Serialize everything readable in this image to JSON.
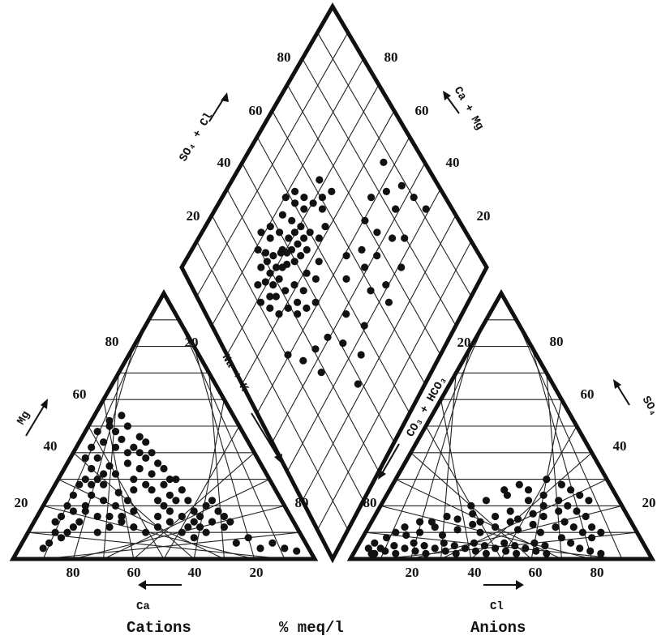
{
  "chart_data": {
    "type": "scatter",
    "subtype": "piper-diagram",
    "captions": {
      "cations": "Cations",
      "units": "% meq/l",
      "anions": "Anions"
    },
    "axis_labels": {
      "ca": "Ca",
      "mg": "Mg",
      "na_k": "Na + K",
      "cl": "Cl",
      "so4": "SO₄",
      "co3_hco3": "CO₃ + HCO₃",
      "so4_cl": "SO₄ + Cl",
      "ca_mg": "Ca + Mg"
    },
    "ticks": {
      "cation_ca": [
        "80",
        "60",
        "40",
        "20"
      ],
      "cation_mg": [
        "20",
        "40",
        "60",
        "80"
      ],
      "cation_na_k": [
        "20",
        "80"
      ],
      "anion_cl": [
        "20",
        "40",
        "60",
        "80"
      ],
      "anion_so4": [
        "20",
        "40",
        "60",
        "80"
      ],
      "anion_co3_hco3": [
        "20",
        "80"
      ],
      "diamond_so4_cl": [
        "20",
        "40",
        "60",
        "80"
      ],
      "diamond_ca_mg": [
        "20",
        "40",
        "60",
        "80"
      ]
    },
    "cation_points": [
      [
        65,
        25
      ],
      [
        70,
        28
      ],
      [
        60,
        30
      ],
      [
        68,
        35
      ],
      [
        72,
        38
      ],
      [
        66,
        42
      ],
      [
        64,
        45
      ],
      [
        70,
        32
      ],
      [
        62,
        36
      ],
      [
        58,
        40
      ],
      [
        66,
        48
      ],
      [
        68,
        52
      ],
      [
        72,
        30
      ],
      [
        74,
        34
      ],
      [
        60,
        26
      ],
      [
        56,
        28
      ],
      [
        54,
        32
      ],
      [
        52,
        22
      ],
      [
        50,
        20
      ],
      [
        48,
        24
      ],
      [
        62,
        22
      ],
      [
        66,
        20
      ],
      [
        70,
        22
      ],
      [
        74,
        24
      ],
      [
        76,
        18
      ],
      [
        78,
        14
      ],
      [
        80,
        12
      ],
      [
        82,
        10
      ],
      [
        84,
        8
      ],
      [
        86,
        10
      ],
      [
        88,
        6
      ],
      [
        90,
        4
      ],
      [
        72,
        10
      ],
      [
        68,
        12
      ],
      [
        64,
        14
      ],
      [
        60,
        12
      ],
      [
        56,
        10
      ],
      [
        52,
        12
      ],
      [
        48,
        14
      ],
      [
        44,
        10
      ],
      [
        40,
        8
      ],
      [
        36,
        10
      ],
      [
        34,
        14
      ],
      [
        30,
        12
      ],
      [
        26,
        6
      ],
      [
        22,
        8
      ],
      [
        18,
        4
      ],
      [
        14,
        6
      ],
      [
        10,
        4
      ],
      [
        6,
        3
      ],
      [
        70,
        44
      ],
      [
        68,
        50
      ],
      [
        72,
        48
      ],
      [
        74,
        42
      ],
      [
        76,
        38
      ],
      [
        64,
        54
      ],
      [
        62,
        50
      ],
      [
        58,
        46
      ],
      [
        56,
        44
      ],
      [
        54,
        40
      ],
      [
        52,
        36
      ],
      [
        50,
        34
      ],
      [
        46,
        30
      ],
      [
        44,
        26
      ],
      [
        42,
        22
      ],
      [
        40,
        18
      ],
      [
        38,
        16
      ],
      [
        36,
        20
      ],
      [
        34,
        22
      ],
      [
        32,
        18
      ],
      [
        30,
        16
      ],
      [
        28,
        14
      ],
      [
        60,
        18
      ],
      [
        64,
        16
      ],
      [
        68,
        16
      ],
      [
        72,
        16
      ],
      [
        76,
        20
      ],
      [
        80,
        18
      ],
      [
        84,
        16
      ],
      [
        86,
        14
      ],
      [
        78,
        28
      ],
      [
        80,
        24
      ],
      [
        82,
        20
      ],
      [
        76,
        30
      ],
      [
        74,
        28
      ],
      [
        66,
        32
      ],
      [
        62,
        40
      ],
      [
        60,
        42
      ],
      [
        58,
        34
      ],
      [
        56,
        38
      ],
      [
        54,
        26
      ],
      [
        50,
        28
      ],
      [
        48,
        30
      ],
      [
        46,
        22
      ],
      [
        52,
        16
      ],
      [
        48,
        18
      ],
      [
        44,
        16
      ],
      [
        40,
        14
      ],
      [
        38,
        12
      ],
      [
        42,
        12
      ]
    ],
    "anion_points": [
      [
        6,
        2
      ],
      [
        8,
        4
      ],
      [
        10,
        3
      ],
      [
        12,
        5
      ],
      [
        14,
        2
      ],
      [
        16,
        4
      ],
      [
        18,
        6
      ],
      [
        20,
        3
      ],
      [
        22,
        5
      ],
      [
        24,
        2
      ],
      [
        26,
        4
      ],
      [
        28,
        6
      ],
      [
        30,
        3
      ],
      [
        32,
        5
      ],
      [
        34,
        2
      ],
      [
        36,
        4
      ],
      [
        38,
        6
      ],
      [
        40,
        3
      ],
      [
        42,
        5
      ],
      [
        44,
        2
      ],
      [
        46,
        4
      ],
      [
        48,
        6
      ],
      [
        50,
        3
      ],
      [
        52,
        5
      ],
      [
        54,
        2
      ],
      [
        56,
        4
      ],
      [
        58,
        6
      ],
      [
        60,
        3
      ],
      [
        62,
        5
      ],
      [
        64,
        2
      ],
      [
        8,
        8
      ],
      [
        10,
        10
      ],
      [
        14,
        9
      ],
      [
        18,
        10
      ],
      [
        22,
        12
      ],
      [
        26,
        9
      ],
      [
        30,
        11
      ],
      [
        34,
        13
      ],
      [
        38,
        10
      ],
      [
        42,
        12
      ],
      [
        46,
        14
      ],
      [
        50,
        11
      ],
      [
        54,
        13
      ],
      [
        58,
        10
      ],
      [
        62,
        12
      ],
      [
        66,
        8
      ],
      [
        70,
        6
      ],
      [
        74,
        4
      ],
      [
        78,
        3
      ],
      [
        82,
        2
      ],
      [
        20,
        14
      ],
      [
        24,
        16
      ],
      [
        28,
        15
      ],
      [
        32,
        17
      ],
      [
        36,
        14
      ],
      [
        40,
        16
      ],
      [
        44,
        18
      ],
      [
        48,
        15
      ],
      [
        52,
        17
      ],
      [
        56,
        16
      ],
      [
        60,
        18
      ],
      [
        64,
        14
      ],
      [
        68,
        12
      ],
      [
        72,
        10
      ],
      [
        76,
        8
      ],
      [
        12,
        12
      ],
      [
        16,
        14
      ],
      [
        4,
        4
      ],
      [
        5,
        6
      ],
      [
        7,
        2
      ],
      [
        40,
        24
      ],
      [
        46,
        26
      ],
      [
        50,
        30
      ],
      [
        54,
        20
      ],
      [
        58,
        22
      ],
      [
        62,
        20
      ],
      [
        66,
        18
      ],
      [
        70,
        16
      ],
      [
        74,
        12
      ],
      [
        78,
        10
      ],
      [
        30,
        20
      ],
      [
        34,
        22
      ],
      [
        38,
        26
      ],
      [
        42,
        28
      ],
      [
        48,
        22
      ],
      [
        52,
        24
      ],
      [
        56,
        28
      ],
      [
        60,
        26
      ],
      [
        64,
        24
      ],
      [
        68,
        22
      ]
    ],
    "diamond_points": [
      [
        30,
        25
      ],
      [
        32,
        28
      ],
      [
        34,
        24
      ],
      [
        36,
        30
      ],
      [
        28,
        30
      ],
      [
        26,
        26
      ],
      [
        38,
        26
      ],
      [
        40,
        30
      ],
      [
        35,
        34
      ],
      [
        30,
        34
      ],
      [
        25,
        30
      ],
      [
        24,
        34
      ],
      [
        22,
        28
      ],
      [
        42,
        24
      ],
      [
        44,
        28
      ],
      [
        46,
        22
      ],
      [
        48,
        26
      ],
      [
        36,
        22
      ],
      [
        32,
        20
      ],
      [
        28,
        22
      ],
      [
        26,
        36
      ],
      [
        30,
        38
      ],
      [
        34,
        40
      ],
      [
        38,
        36
      ],
      [
        42,
        34
      ],
      [
        44,
        38
      ],
      [
        40,
        42
      ],
      [
        36,
        44
      ],
      [
        32,
        44
      ],
      [
        28,
        42
      ],
      [
        24,
        40
      ],
      [
        22,
        36
      ],
      [
        20,
        32
      ],
      [
        46,
        32
      ],
      [
        48,
        36
      ],
      [
        50,
        30
      ],
      [
        52,
        28
      ],
      [
        50,
        24
      ],
      [
        54,
        32
      ],
      [
        56,
        36
      ],
      [
        30,
        46
      ],
      [
        34,
        48
      ],
      [
        38,
        50
      ],
      [
        42,
        46
      ],
      [
        46,
        44
      ],
      [
        50,
        40
      ],
      [
        54,
        40
      ],
      [
        58,
        34
      ],
      [
        60,
        30
      ],
      [
        62,
        36
      ],
      [
        35,
        30
      ],
      [
        37,
        32
      ],
      [
        33,
        33
      ],
      [
        31,
        31
      ],
      [
        29,
        27
      ],
      [
        27,
        33
      ],
      [
        39,
        33
      ],
      [
        41,
        37
      ],
      [
        43,
        31
      ],
      [
        45,
        35
      ],
      [
        60,
        60
      ],
      [
        66,
        62
      ],
      [
        70,
        58
      ],
      [
        74,
        64
      ],
      [
        64,
        70
      ],
      [
        58,
        66
      ],
      [
        62,
        74
      ],
      [
        72,
        72
      ],
      [
        78,
        68
      ],
      [
        80,
        60
      ],
      [
        52,
        56
      ],
      [
        56,
        52
      ],
      [
        62,
        56
      ],
      [
        68,
        52
      ],
      [
        74,
        50
      ],
      [
        80,
        54
      ],
      [
        84,
        48
      ],
      [
        86,
        58
      ],
      [
        88,
        64
      ],
      [
        90,
        70
      ],
      [
        20,
        50
      ],
      [
        24,
        56
      ],
      [
        30,
        58
      ],
      [
        36,
        60
      ],
      [
        28,
        64
      ],
      [
        40,
        66
      ],
      [
        46,
        62
      ],
      [
        50,
        70
      ],
      [
        44,
        74
      ],
      [
        38,
        78
      ]
    ]
  }
}
